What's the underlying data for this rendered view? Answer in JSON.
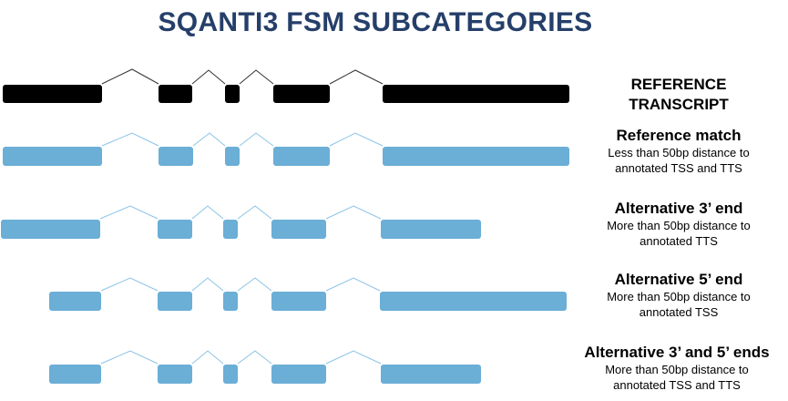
{
  "title": "SQANTI3 FSM SUBCATEGORIES",
  "colors": {
    "reference": "#000000",
    "isoform": "#6BAED6",
    "title": "#253F6A"
  },
  "rows": [
    {
      "id": "reference",
      "name_line1": "REFERENCE",
      "name_line2": "TRANSCRIPT",
      "desc_line1": "",
      "desc_line2": ""
    },
    {
      "id": "reference-match",
      "name_line1": "Reference match",
      "desc_line1": "Less than 50bp distance to",
      "desc_line2": "annotated TSS and TTS"
    },
    {
      "id": "alt-3-end",
      "name_line1": "Alternative 3’ end",
      "desc_line1": "More than 50bp distance to",
      "desc_line2": "annotated TTS"
    },
    {
      "id": "alt-5-end",
      "name_line1": "Alternative 5’ end",
      "desc_line1": "More than 50bp distance to",
      "desc_line2": "annotated TSS"
    },
    {
      "id": "alt-3-5-ends",
      "name_line1": "Alternative 3’ and 5’ ends",
      "desc_line1": "More than 50bp distance to",
      "desc_line2": "annotated TSS and TTS"
    }
  ]
}
